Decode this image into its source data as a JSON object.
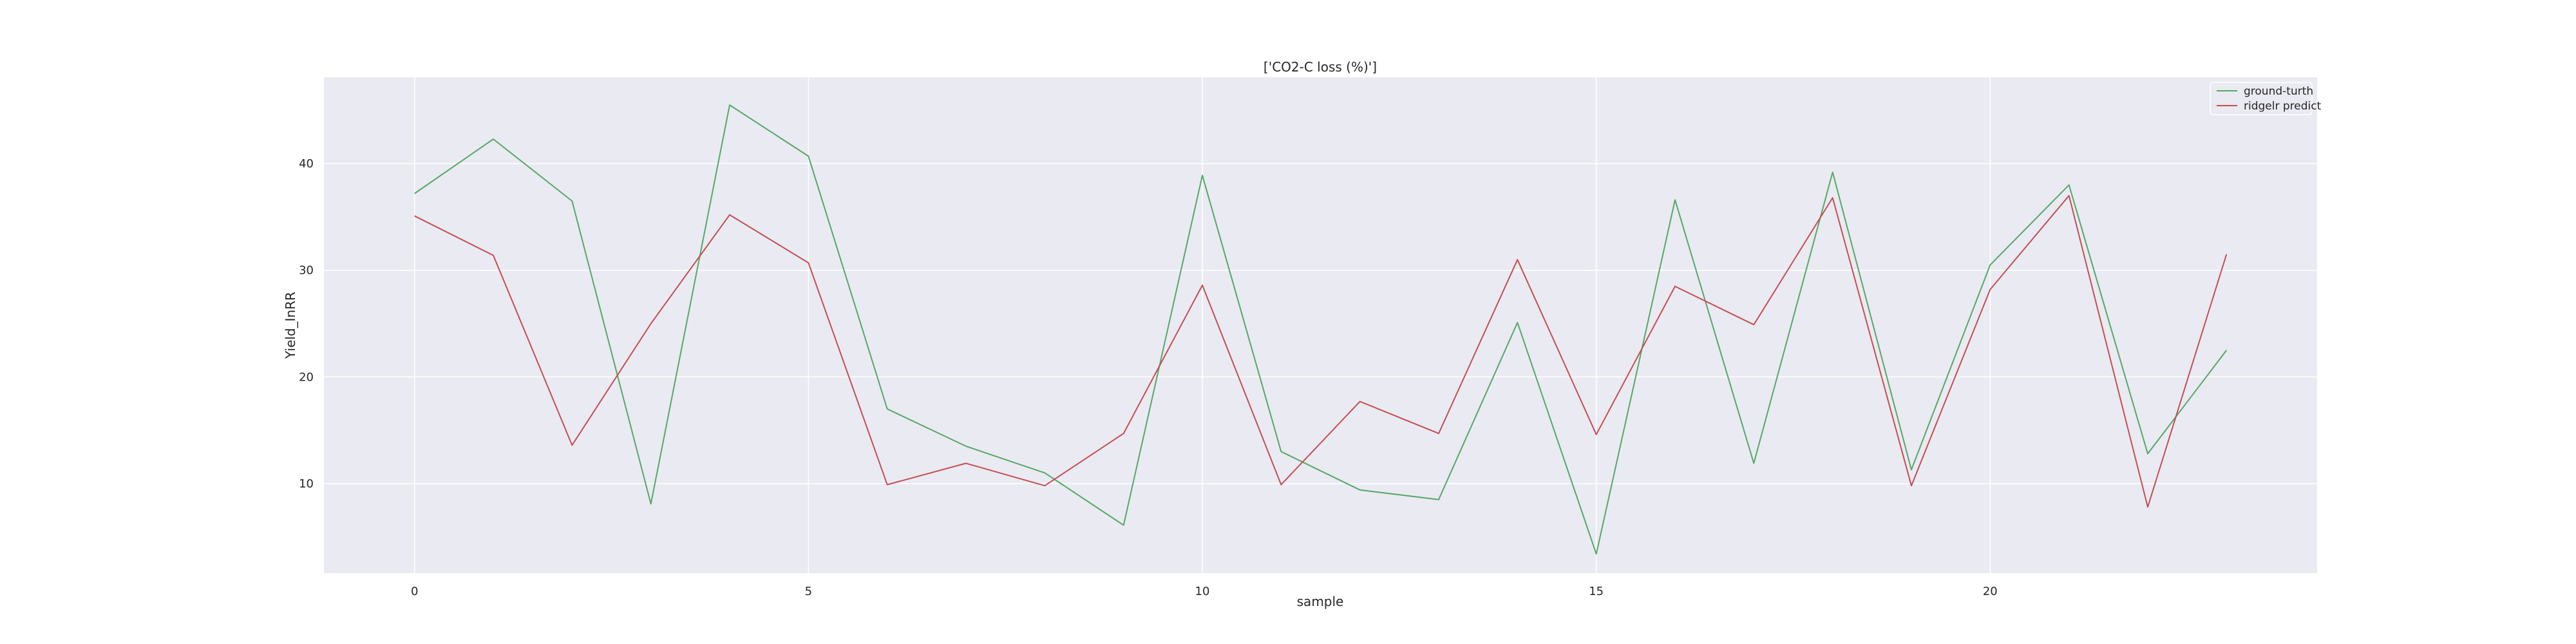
{
  "chart_data": {
    "type": "line",
    "title": "['CO2-C loss (%)']",
    "xlabel": "sample",
    "ylabel": "Yield_InRR",
    "x": [
      0,
      1,
      2,
      3,
      4,
      5,
      6,
      7,
      8,
      9,
      10,
      11,
      12,
      13,
      14,
      15,
      16,
      17,
      18,
      19,
      20,
      21,
      22,
      23
    ],
    "xlim": [
      -1.15,
      24.15
    ],
    "ylim": [
      1.6,
      48.1
    ],
    "xticks": [
      0,
      5,
      10,
      15,
      20
    ],
    "yticks": [
      10,
      20,
      30,
      40
    ],
    "grid": true,
    "legend_position": "top-right",
    "series": [
      {
        "name": "ground-turth",
        "color": "#55a868",
        "values": [
          37.2,
          42.3,
          36.5,
          8.1,
          45.5,
          40.7,
          17.0,
          13.5,
          11.0,
          6.1,
          38.9,
          13.0,
          9.4,
          8.5,
          25.1,
          3.4,
          36.6,
          11.9,
          39.2,
          11.3,
          30.5,
          38.0,
          12.8,
          22.5
        ]
      },
      {
        "name": "ridgelr predict",
        "color": "#c44e52",
        "values": [
          35.1,
          31.4,
          13.6,
          25.0,
          35.2,
          30.7,
          9.9,
          11.9,
          9.8,
          14.7,
          28.6,
          9.9,
          17.7,
          14.7,
          31.0,
          14.6,
          28.5,
          24.9,
          36.8,
          9.8,
          28.2,
          37.0,
          7.8,
          31.5
        ]
      }
    ]
  }
}
